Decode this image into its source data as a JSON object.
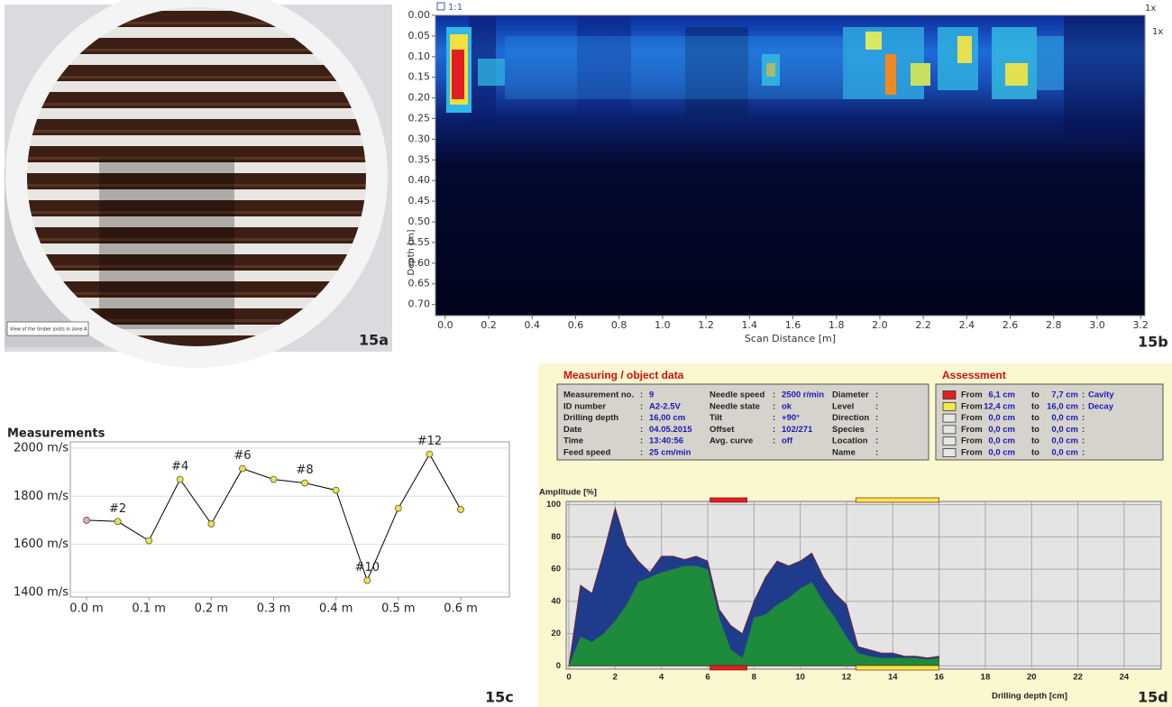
{
  "photo": {
    "caption": "View of the timber joists in zone A",
    "label": "15a"
  },
  "chart_data": [
    {
      "type": "heatmap",
      "label": "15b",
      "x_label": "Scan Distance [m]",
      "y_label": "Depth [m]",
      "scale_label": "1:1",
      "zoom_label": "1x",
      "xlim": [
        -0.045,
        3.22
      ],
      "ylim": [
        0.727,
        0
      ],
      "xticks": [
        {
          "value": 0,
          "label": "0.0"
        },
        0.2,
        0.4,
        0.6,
        0.8,
        {
          "value": 1,
          "label": "1.0"
        },
        1.2,
        1.4,
        1.6,
        1.8,
        {
          "value": 2,
          "label": "2.0"
        },
        2.2,
        2.4,
        2.6,
        2.8,
        {
          "value": 3,
          "label": "3.0"
        },
        3.2
      ],
      "yticks": [
        {
          "value": 0,
          "label": "0.00"
        },
        0.05,
        {
          "value": 0.1,
          "label": "0.10"
        },
        0.15,
        {
          "value": 0.2,
          "label": "0.20"
        },
        0.25,
        {
          "value": 0.3,
          "label": "0.30"
        },
        0.35,
        {
          "value": 0.4,
          "label": "0.40"
        },
        0.45,
        {
          "value": 0.5,
          "label": "0.50"
        },
        0.55,
        {
          "value": 0.6,
          "label": "0.60"
        },
        0.65,
        {
          "value": 0.7,
          "label": "0.70"
        }
      ]
    },
    {
      "type": "line",
      "title": "Measurements",
      "label": "15c",
      "x": [
        0,
        0.05,
        0.1,
        0.15,
        0.2,
        0.25,
        0.3,
        0.35,
        0.4,
        0.45,
        0.5,
        0.55,
        0.6
      ],
      "xlim": [
        -0.026,
        0.678
      ],
      "ylim": [
        1381,
        2026
      ],
      "xticks": [
        {
          "value": 0,
          "label": "0.0 m"
        },
        {
          "value": 0.1,
          "label": "0.1 m"
        },
        {
          "value": 0.2,
          "label": "0.2 m"
        },
        {
          "value": 0.3,
          "label": "0.3 m"
        },
        {
          "value": 0.4,
          "label": "0.4 m"
        },
        {
          "value": 0.5,
          "label": "0.5 m"
        },
        {
          "value": 0.6,
          "label": "0.6 m"
        }
      ],
      "yticks": [
        {
          "value": 1400,
          "label": "1400 m/s"
        },
        {
          "value": 1600,
          "label": "1600 m/s"
        },
        {
          "value": 1800,
          "label": "1800 m/s"
        },
        {
          "value": 2000,
          "label": "2000 m/s"
        }
      ],
      "grid": true,
      "series": [
        {
          "color": "#000000",
          "values": [
            1700,
            1695,
            1615,
            1870,
            1685,
            1915,
            1870,
            1855,
            1825,
            1450,
            1750,
            1975,
            1745
          ],
          "point_colors": [
            "#e8a6c8",
            "#ece448",
            "#ece448",
            "#ece448",
            "#ece448",
            "#ece448",
            "#ece448",
            "#ece448",
            "#ece448",
            "#ece448",
            "#ece448",
            "#ece448",
            "#ece448"
          ],
          "point_labels": [
            null,
            "#2",
            null,
            "#4",
            null,
            "#6",
            null,
            "#8",
            null,
            "#10",
            null,
            "#12",
            null
          ]
        }
      ]
    },
    {
      "type": "area",
      "label": "15d",
      "y_label": "Amplitude [%]",
      "x_label": "Drilling depth [cm]",
      "xlim": [
        0,
        25.6
      ],
      "ylim": [
        -2,
        102
      ],
      "xticks": [
        0,
        2,
        4,
        6,
        8,
        10,
        12,
        14,
        16,
        18,
        20,
        22,
        24
      ],
      "yticks": [
        0,
        20,
        40,
        60,
        80,
        100
      ],
      "grid": true,
      "x": [
        0,
        0.5,
        1,
        1.5,
        2,
        2.5,
        3,
        3.5,
        4,
        4.5,
        5,
        5.5,
        6,
        6.5,
        7,
        7.5,
        8,
        8.5,
        9,
        9.5,
        10,
        10.5,
        11,
        11.5,
        12,
        12.5,
        13,
        13.5,
        14,
        14.5,
        15,
        15.5,
        16
      ],
      "series": [
        {
          "color": "#1f3c8c",
          "values": [
            0,
            50,
            45,
            70,
            98,
            75,
            65,
            58,
            68,
            68,
            66,
            68,
            65,
            35,
            25,
            20,
            40,
            55,
            65,
            62,
            65,
            70,
            55,
            45,
            38,
            12,
            10,
            8,
            8,
            6,
            6,
            5,
            6
          ]
        },
        {
          "color": "#1d8a3c",
          "values": [
            0,
            18,
            15,
            20,
            28,
            38,
            52,
            55,
            58,
            60,
            62,
            62,
            60,
            30,
            10,
            5,
            30,
            32,
            38,
            42,
            48,
            52,
            40,
            30,
            18,
            8,
            6,
            5,
            5,
            5,
            5,
            4,
            5
          ]
        }
      ],
      "measuring": {
        "title": "Measuring / object data",
        "separator": ":",
        "columns": [
          [
            {
              "label": "Measurement no.",
              "value": "9"
            },
            {
              "label": "ID number",
              "value": "A2-2.5V"
            },
            {
              "label": "Drilling depth",
              "value": "16,00 cm"
            },
            {
              "label": "Date",
              "value": "04.05.2015"
            },
            {
              "label": "Time",
              "value": "13:40:56"
            },
            {
              "label": "Feed speed",
              "value": "25 cm/min"
            }
          ],
          [
            {
              "label": "Needle speed",
              "value": "2500 r/min"
            },
            {
              "label": "Needle state",
              "value": "ok"
            },
            {
              "label": "Tilt",
              "value": "+90°"
            },
            {
              "label": "Offset",
              "value": "102/271"
            },
            {
              "label": "Avg. curve",
              "value": "off"
            }
          ],
          [
            {
              "label": "Diameter"
            },
            {
              "label": "Level"
            },
            {
              "label": "Direction"
            },
            {
              "label": "Species"
            },
            {
              "label": "Location"
            },
            {
              "label": "Name"
            }
          ]
        ]
      },
      "assessment": {
        "title": "Assessment",
        "from_word": "From",
        "to_word": "to",
        "separator": ":",
        "rows": [
          {
            "color": "#e02020",
            "from": {
              "value": 6.1,
              "label": "6,1 cm"
            },
            "to": {
              "value": 7.7,
              "label": "7,7 cm"
            },
            "type": "Cavity"
          },
          {
            "color": "#f2e84a",
            "from": {
              "value": 12.4,
              "label": "12,4 cm"
            },
            "to": {
              "value": 16,
              "label": "16,0 cm"
            },
            "type": "Decay"
          },
          {
            "color": "#e6e6e6",
            "from": {
              "value": 0,
              "label": "0,0 cm"
            },
            "to": {
              "value": 0,
              "label": "0,0 cm"
            }
          },
          {
            "color": "#e6e6e6",
            "from": {
              "value": 0,
              "label": "0,0 cm"
            },
            "to": {
              "value": 0,
              "label": "0,0 cm"
            }
          },
          {
            "color": "#e6e6e6",
            "from": {
              "value": 0,
              "label": "0,0 cm"
            },
            "to": {
              "value": 0,
              "label": "0,0 cm"
            }
          },
          {
            "color": "#e6e6e6",
            "from": {
              "value": 0,
              "label": "0,0 cm"
            },
            "to": {
              "value": 0,
              "label": "0,0 cm"
            }
          }
        ]
      }
    }
  ]
}
